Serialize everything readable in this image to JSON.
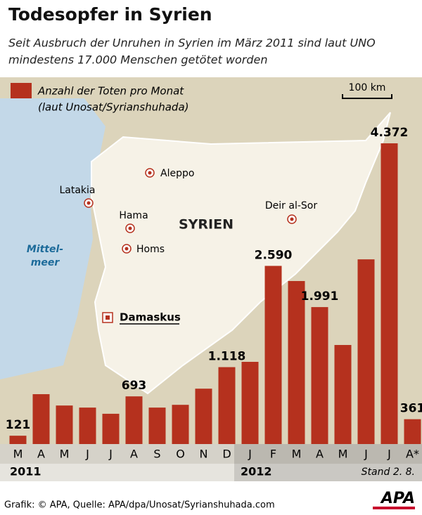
{
  "chart_data": {
    "type": "bar",
    "title": "Todesopfer in Syrien",
    "subtitle": [
      "Seit Ausbruch der Unruhen in Syrien im März 2011 sind laut UNO",
      "mindestens 17.000 Menschen getötet worden"
    ],
    "categories": [
      "M",
      "A",
      "M",
      "J",
      "J",
      "A",
      "S",
      "O",
      "N",
      "D",
      "J",
      "F",
      "M",
      "A",
      "M",
      "J",
      "J",
      "A*"
    ],
    "years": [
      "2011",
      "2012"
    ],
    "note": "Stand 2. 8.",
    "series": [
      {
        "name": "Anzahl der Toten pro Monat",
        "name_note": "(laut Unosat/Syrianshuhada)",
        "color": "#b5311e",
        "values": [
          121,
          725,
          560,
          530,
          440,
          693,
          530,
          570,
          805,
          1118,
          1195,
          2590,
          2370,
          1991,
          1440,
          2685,
          4372,
          361
        ],
        "value_labels": [
          "121",
          null,
          null,
          null,
          null,
          "693",
          null,
          null,
          null,
          "1.118",
          null,
          "2.590",
          null,
          "1.991",
          null,
          null,
          "4.372",
          "361"
        ]
      }
    ]
  },
  "map": {
    "scale": "100 km",
    "country": "SYRIEN",
    "sea": [
      "Mittel-",
      "meer"
    ],
    "cities": [
      "Aleppo",
      "Latakia",
      "Hama",
      "Homs",
      "Deir al-Sor"
    ],
    "capital": "Damaskus"
  },
  "footer": {
    "source": "Grafik: © APA, Quelle: APA/dpa/Unosat/Syrianshuhada.com",
    "logo": "APA"
  }
}
